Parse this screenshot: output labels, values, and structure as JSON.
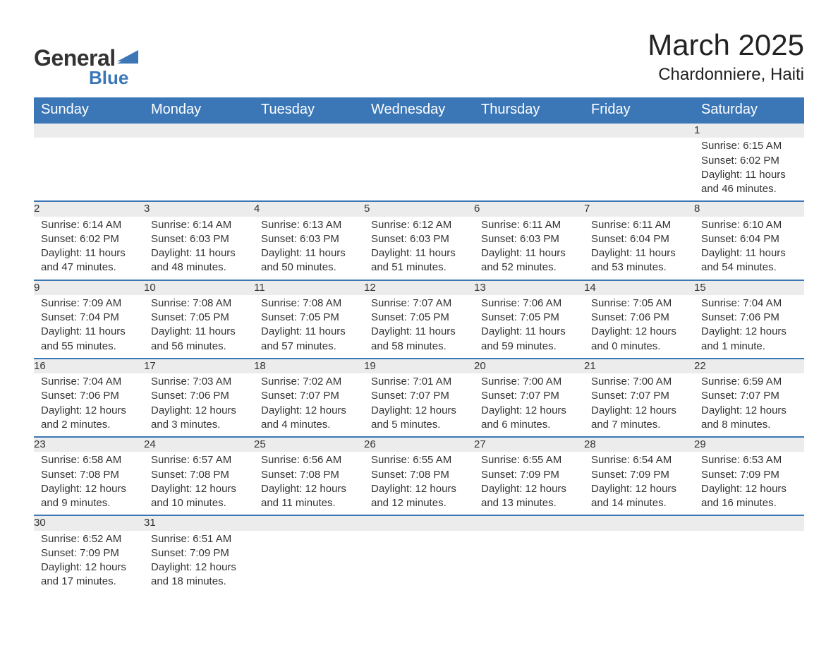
{
  "logo": {
    "part1": "General",
    "part2": "Blue"
  },
  "title": "March 2025",
  "location": "Chardonniere, Haiti",
  "colors": {
    "header_bg": "#3b77b7",
    "header_text": "#ffffff",
    "daynum_bg": "#ececec",
    "row_border": "#3b77b7",
    "body_text": "#333333"
  },
  "typography": {
    "title_fontsize": 42,
    "location_fontsize": 24,
    "header_fontsize": 20,
    "daynum_fontsize": 18,
    "body_fontsize": 15
  },
  "weekdays": [
    "Sunday",
    "Monday",
    "Tuesday",
    "Wednesday",
    "Thursday",
    "Friday",
    "Saturday"
  ],
  "weeks": [
    [
      null,
      null,
      null,
      null,
      null,
      null,
      {
        "n": "1",
        "sunrise": "Sunrise: 6:15 AM",
        "sunset": "Sunset: 6:02 PM",
        "day1": "Daylight: 11 hours",
        "day2": "and 46 minutes."
      }
    ],
    [
      {
        "n": "2",
        "sunrise": "Sunrise: 6:14 AM",
        "sunset": "Sunset: 6:02 PM",
        "day1": "Daylight: 11 hours",
        "day2": "and 47 minutes."
      },
      {
        "n": "3",
        "sunrise": "Sunrise: 6:14 AM",
        "sunset": "Sunset: 6:03 PM",
        "day1": "Daylight: 11 hours",
        "day2": "and 48 minutes."
      },
      {
        "n": "4",
        "sunrise": "Sunrise: 6:13 AM",
        "sunset": "Sunset: 6:03 PM",
        "day1": "Daylight: 11 hours",
        "day2": "and 50 minutes."
      },
      {
        "n": "5",
        "sunrise": "Sunrise: 6:12 AM",
        "sunset": "Sunset: 6:03 PM",
        "day1": "Daylight: 11 hours",
        "day2": "and 51 minutes."
      },
      {
        "n": "6",
        "sunrise": "Sunrise: 6:11 AM",
        "sunset": "Sunset: 6:03 PM",
        "day1": "Daylight: 11 hours",
        "day2": "and 52 minutes."
      },
      {
        "n": "7",
        "sunrise": "Sunrise: 6:11 AM",
        "sunset": "Sunset: 6:04 PM",
        "day1": "Daylight: 11 hours",
        "day2": "and 53 minutes."
      },
      {
        "n": "8",
        "sunrise": "Sunrise: 6:10 AM",
        "sunset": "Sunset: 6:04 PM",
        "day1": "Daylight: 11 hours",
        "day2": "and 54 minutes."
      }
    ],
    [
      {
        "n": "9",
        "sunrise": "Sunrise: 7:09 AM",
        "sunset": "Sunset: 7:04 PM",
        "day1": "Daylight: 11 hours",
        "day2": "and 55 minutes."
      },
      {
        "n": "10",
        "sunrise": "Sunrise: 7:08 AM",
        "sunset": "Sunset: 7:05 PM",
        "day1": "Daylight: 11 hours",
        "day2": "and 56 minutes."
      },
      {
        "n": "11",
        "sunrise": "Sunrise: 7:08 AM",
        "sunset": "Sunset: 7:05 PM",
        "day1": "Daylight: 11 hours",
        "day2": "and 57 minutes."
      },
      {
        "n": "12",
        "sunrise": "Sunrise: 7:07 AM",
        "sunset": "Sunset: 7:05 PM",
        "day1": "Daylight: 11 hours",
        "day2": "and 58 minutes."
      },
      {
        "n": "13",
        "sunrise": "Sunrise: 7:06 AM",
        "sunset": "Sunset: 7:05 PM",
        "day1": "Daylight: 11 hours",
        "day2": "and 59 minutes."
      },
      {
        "n": "14",
        "sunrise": "Sunrise: 7:05 AM",
        "sunset": "Sunset: 7:06 PM",
        "day1": "Daylight: 12 hours",
        "day2": "and 0 minutes."
      },
      {
        "n": "15",
        "sunrise": "Sunrise: 7:04 AM",
        "sunset": "Sunset: 7:06 PM",
        "day1": "Daylight: 12 hours",
        "day2": "and 1 minute."
      }
    ],
    [
      {
        "n": "16",
        "sunrise": "Sunrise: 7:04 AM",
        "sunset": "Sunset: 7:06 PM",
        "day1": "Daylight: 12 hours",
        "day2": "and 2 minutes."
      },
      {
        "n": "17",
        "sunrise": "Sunrise: 7:03 AM",
        "sunset": "Sunset: 7:06 PM",
        "day1": "Daylight: 12 hours",
        "day2": "and 3 minutes."
      },
      {
        "n": "18",
        "sunrise": "Sunrise: 7:02 AM",
        "sunset": "Sunset: 7:07 PM",
        "day1": "Daylight: 12 hours",
        "day2": "and 4 minutes."
      },
      {
        "n": "19",
        "sunrise": "Sunrise: 7:01 AM",
        "sunset": "Sunset: 7:07 PM",
        "day1": "Daylight: 12 hours",
        "day2": "and 5 minutes."
      },
      {
        "n": "20",
        "sunrise": "Sunrise: 7:00 AM",
        "sunset": "Sunset: 7:07 PM",
        "day1": "Daylight: 12 hours",
        "day2": "and 6 minutes."
      },
      {
        "n": "21",
        "sunrise": "Sunrise: 7:00 AM",
        "sunset": "Sunset: 7:07 PM",
        "day1": "Daylight: 12 hours",
        "day2": "and 7 minutes."
      },
      {
        "n": "22",
        "sunrise": "Sunrise: 6:59 AM",
        "sunset": "Sunset: 7:07 PM",
        "day1": "Daylight: 12 hours",
        "day2": "and 8 minutes."
      }
    ],
    [
      {
        "n": "23",
        "sunrise": "Sunrise: 6:58 AM",
        "sunset": "Sunset: 7:08 PM",
        "day1": "Daylight: 12 hours",
        "day2": "and 9 minutes."
      },
      {
        "n": "24",
        "sunrise": "Sunrise: 6:57 AM",
        "sunset": "Sunset: 7:08 PM",
        "day1": "Daylight: 12 hours",
        "day2": "and 10 minutes."
      },
      {
        "n": "25",
        "sunrise": "Sunrise: 6:56 AM",
        "sunset": "Sunset: 7:08 PM",
        "day1": "Daylight: 12 hours",
        "day2": "and 11 minutes."
      },
      {
        "n": "26",
        "sunrise": "Sunrise: 6:55 AM",
        "sunset": "Sunset: 7:08 PM",
        "day1": "Daylight: 12 hours",
        "day2": "and 12 minutes."
      },
      {
        "n": "27",
        "sunrise": "Sunrise: 6:55 AM",
        "sunset": "Sunset: 7:09 PM",
        "day1": "Daylight: 12 hours",
        "day2": "and 13 minutes."
      },
      {
        "n": "28",
        "sunrise": "Sunrise: 6:54 AM",
        "sunset": "Sunset: 7:09 PM",
        "day1": "Daylight: 12 hours",
        "day2": "and 14 minutes."
      },
      {
        "n": "29",
        "sunrise": "Sunrise: 6:53 AM",
        "sunset": "Sunset: 7:09 PM",
        "day1": "Daylight: 12 hours",
        "day2": "and 16 minutes."
      }
    ],
    [
      {
        "n": "30",
        "sunrise": "Sunrise: 6:52 AM",
        "sunset": "Sunset: 7:09 PM",
        "day1": "Daylight: 12 hours",
        "day2": "and 17 minutes."
      },
      {
        "n": "31",
        "sunrise": "Sunrise: 6:51 AM",
        "sunset": "Sunset: 7:09 PM",
        "day1": "Daylight: 12 hours",
        "day2": "and 18 minutes."
      },
      null,
      null,
      null,
      null,
      null
    ]
  ]
}
